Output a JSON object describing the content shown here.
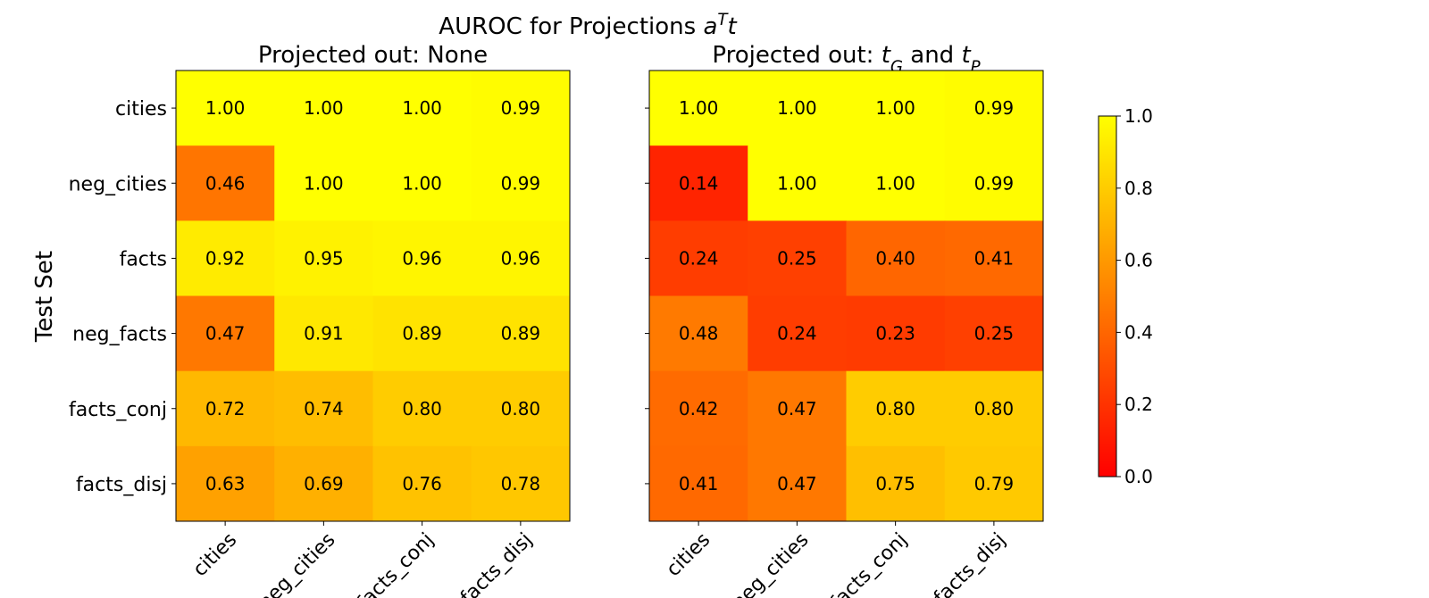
{
  "chart_data": {
    "type": "heatmap",
    "title": [
      {
        "text": "AUROC for Projections "
      },
      {
        "text": "a",
        "style": "italic"
      },
      {
        "text": "T",
        "style": "sup-italic"
      },
      {
        "text": "t",
        "style": "italic"
      }
    ],
    "ylabel": "Test Set",
    "rows": [
      "cities",
      "neg_cities",
      "facts",
      "neg_facts",
      "facts_conj",
      "facts_disj"
    ],
    "colormap": [
      "#ff0000",
      "#ffff00"
    ],
    "colorbar": {
      "ylim": [
        0,
        1
      ],
      "yticks": [
        {
          "value": 0,
          "label": "0.0"
        },
        {
          "value": 0.2,
          "label": "0.2"
        },
        {
          "value": 0.4,
          "label": "0.4"
        },
        {
          "value": 0.6,
          "label": "0.6"
        },
        {
          "value": 0.8,
          "label": "0.8"
        },
        {
          "value": 1,
          "label": "1.0"
        }
      ]
    },
    "panels": [
      {
        "subtitle": [
          {
            "text": "Projected out: None"
          }
        ],
        "categories": [
          "cities",
          "neg_cities",
          "facts_conj",
          "facts_disj"
        ],
        "values": [
          [
            1,
            1,
            1,
            0.99
          ],
          [
            0.46,
            1,
            1,
            0.99
          ],
          [
            0.92,
            0.95,
            0.96,
            0.96
          ],
          [
            0.47,
            0.91,
            0.89,
            0.89
          ],
          [
            0.72,
            0.74,
            0.8,
            0.8
          ],
          [
            0.63,
            0.69,
            0.76,
            0.78
          ]
        ],
        "value_labels": [
          [
            "1.00",
            "1.00",
            "1.00",
            "0.99"
          ],
          [
            "0.46",
            "1.00",
            "1.00",
            "0.99"
          ],
          [
            "0.92",
            "0.95",
            "0.96",
            "0.96"
          ],
          [
            "0.47",
            "0.91",
            "0.89",
            "0.89"
          ],
          [
            "0.72",
            "0.74",
            "0.80",
            "0.80"
          ],
          [
            "0.63",
            "0.69",
            "0.76",
            "0.78"
          ]
        ],
        "row_labels": true
      },
      {
        "subtitle": [
          {
            "text": "Projected out: "
          },
          {
            "text": "t",
            "style": "italic"
          },
          {
            "text": "G",
            "style": "sub-italic"
          },
          {
            "text": " and "
          },
          {
            "text": "t",
            "style": "italic"
          },
          {
            "text": "P",
            "style": "sub-italic"
          }
        ],
        "categories": [
          "cities",
          "neg_cities",
          "facts_conj",
          "facts_disj"
        ],
        "values": [
          [
            1,
            1,
            1,
            0.99
          ],
          [
            0.14,
            1,
            1,
            0.99
          ],
          [
            0.24,
            0.25,
            0.4,
            0.41
          ],
          [
            0.48,
            0.24,
            0.23,
            0.25
          ],
          [
            0.42,
            0.47,
            0.8,
            0.8
          ],
          [
            0.41,
            0.47,
            0.75,
            0.79
          ]
        ],
        "value_labels": [
          [
            "1.00",
            "1.00",
            "1.00",
            "0.99"
          ],
          [
            "0.14",
            "1.00",
            "1.00",
            "0.99"
          ],
          [
            "0.24",
            "0.25",
            "0.40",
            "0.41"
          ],
          [
            "0.48",
            "0.24",
            "0.23",
            "0.25"
          ],
          [
            "0.42",
            "0.47",
            "0.80",
            "0.80"
          ],
          [
            "0.41",
            "0.47",
            "0.75",
            "0.79"
          ]
        ],
        "row_labels": false
      }
    ]
  }
}
